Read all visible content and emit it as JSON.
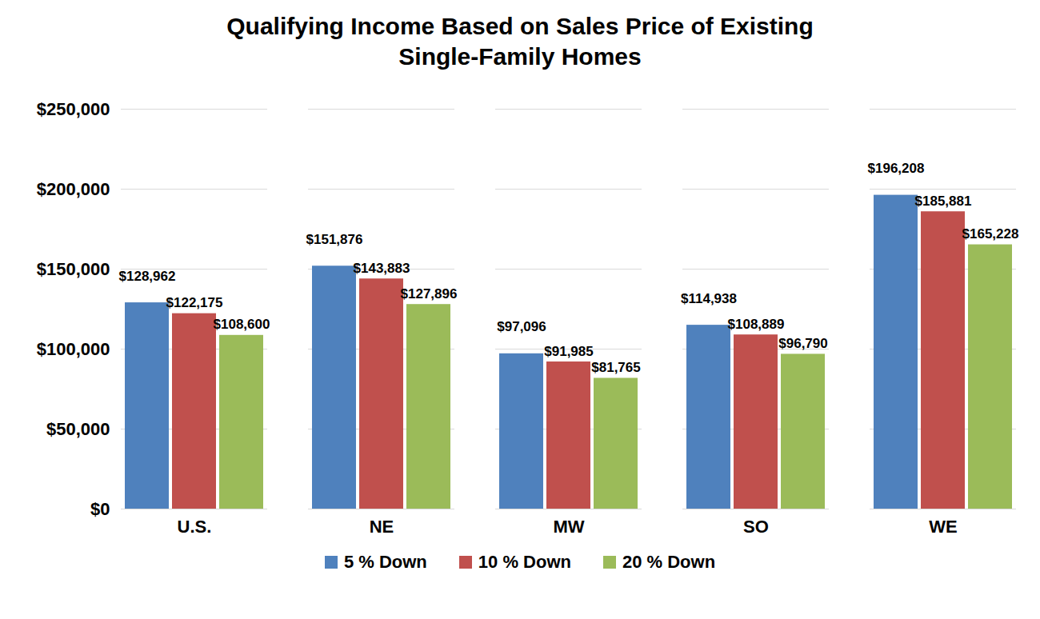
{
  "chart_data": {
    "type": "bar",
    "title": "Qualifying Income Based on Sales Price of Existing Single-Family Homes",
    "categories": [
      "U.S.",
      "NE",
      "MW",
      "SO",
      "WE"
    ],
    "series": [
      {
        "name": "5 % Down",
        "color": "#4f81bd",
        "values": [
          128962,
          151876,
          97096,
          114938,
          196208
        ],
        "value_labels": [
          "$128,962",
          "$151,876",
          "$97,096",
          "$114,938",
          "$196,208"
        ]
      },
      {
        "name": "10 % Down",
        "color": "#c0504d",
        "values": [
          122175,
          143883,
          91985,
          108889,
          185881
        ],
        "value_labels": [
          "$122,175",
          "$143,883",
          "$91,985",
          "$108,889",
          "$185,881"
        ]
      },
      {
        "name": "20 % Down",
        "color": "#9bbb59",
        "values": [
          108600,
          127896,
          81765,
          96790,
          165228
        ],
        "value_labels": [
          "$108,600",
          "$127,896",
          "$81,765",
          "$96,790",
          "$165,228"
        ]
      }
    ],
    "ylim": [
      0,
      250000
    ],
    "yticks": [
      {
        "value": 0,
        "label": "$0"
      },
      {
        "value": 50000,
        "label": "$50,000"
      },
      {
        "value": 100000,
        "label": "$100,000"
      },
      {
        "value": 150000,
        "label": "$150,000"
      },
      {
        "value": 200000,
        "label": "$200,000"
      },
      {
        "value": 250000,
        "label": "$250,000"
      }
    ],
    "grid": true,
    "data_labels": true,
    "legend": "bottom"
  }
}
